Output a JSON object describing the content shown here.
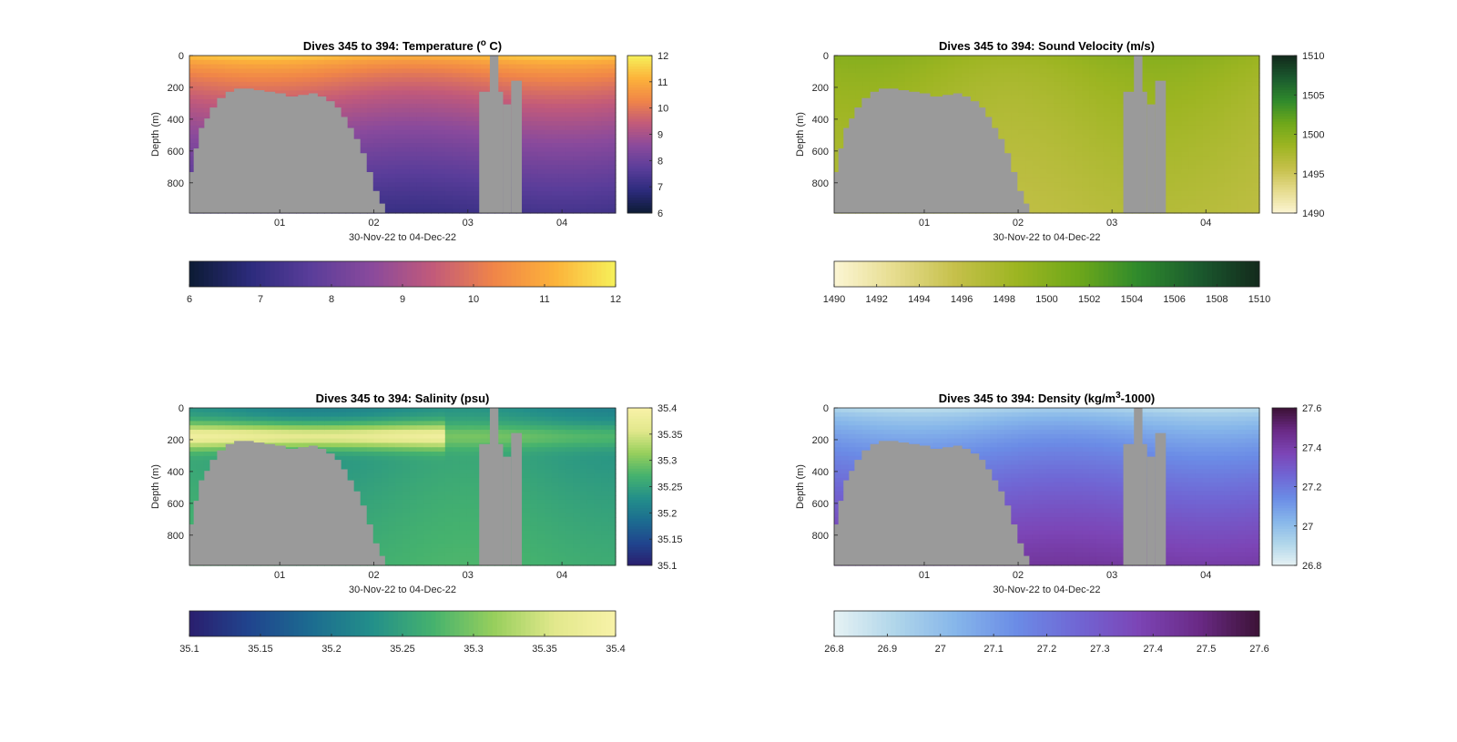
{
  "chart_data": [
    {
      "type": "heatmap",
      "title": "Dives 345 to 394: Temperature (",
      "title_sup": "o",
      "title_end": " C)",
      "xlabel": "30-Nov-22 to 04-Dec-22",
      "ylabel": "Depth (m)",
      "x_ticks": [
        "01",
        "02",
        "03",
        "04"
      ],
      "x_tick_days": [
        1,
        2,
        3,
        4
      ],
      "xlim_days": [
        0.04,
        4.57
      ],
      "y_ticks": [
        0,
        200,
        400,
        600,
        800
      ],
      "ylim": [
        0,
        990
      ],
      "clim": [
        6,
        12
      ],
      "colorbar_ticks": [
        6,
        7,
        8,
        9,
        10,
        11,
        12
      ],
      "horizontal_colorbar_ticks": [
        6,
        7,
        8,
        9,
        10,
        11,
        12
      ],
      "colormap": [
        "#0c1b34",
        "#2c2b7c",
        "#5a3d9a",
        "#8a4a9c",
        "#c25a7a",
        "#f08548",
        "#fcb23a",
        "#f6f05a"
      ],
      "surface_value": 11.6,
      "deep_value": 7.2,
      "inverted_gradient": false
    },
    {
      "type": "heatmap",
      "title": "Dives 345 to 394: Sound Velocity (m/s)",
      "xlabel": "30-Nov-22 to 04-Dec-22",
      "ylabel": "Depth (m)",
      "x_ticks": [
        "01",
        "02",
        "03",
        "04"
      ],
      "x_tick_days": [
        1,
        2,
        3,
        4
      ],
      "xlim_days": [
        0.04,
        4.57
      ],
      "y_ticks": [
        0,
        200,
        400,
        600,
        800
      ],
      "ylim": [
        0,
        990
      ],
      "clim": [
        1490,
        1510
      ],
      "colorbar_ticks": [
        1490,
        1495,
        1500,
        1505,
        1510
      ],
      "horizontal_colorbar_ticks": [
        1490,
        1492,
        1494,
        1496,
        1498,
        1500,
        1502,
        1504,
        1506,
        1508,
        1510
      ],
      "colormap": [
        "#fcf6d4",
        "#e6dc8e",
        "#c5c04a",
        "#9db522",
        "#6fa81a",
        "#2f8a2c",
        "#1b5a2e",
        "#132a1c"
      ],
      "surface_value": 1499.5,
      "deep_value": 1496.5,
      "inverted_gradient": false
    },
    {
      "type": "heatmap",
      "title": "Dives 345 to 394: Salinity (psu)",
      "xlabel": "30-Nov-22 to 04-Dec-22",
      "ylabel": "Depth (m)",
      "x_ticks": [
        "01",
        "02",
        "03",
        "04"
      ],
      "x_tick_days": [
        1,
        2,
        3,
        4
      ],
      "xlim_days": [
        0.04,
        4.57
      ],
      "y_ticks": [
        0,
        200,
        400,
        600,
        800
      ],
      "ylim": [
        0,
        990
      ],
      "clim": [
        35.1,
        35.4
      ],
      "colorbar_ticks": [
        35.1,
        35.15,
        35.2,
        35.25,
        35.3,
        35.35,
        35.4
      ],
      "horizontal_colorbar_ticks": [
        35.1,
        35.15,
        35.2,
        35.25,
        35.3,
        35.35,
        35.4
      ],
      "colormap": [
        "#2a1e6e",
        "#20458e",
        "#1c6c90",
        "#238f8a",
        "#45b26e",
        "#97cf5c",
        "#e2e88c",
        "#f8f2a8"
      ],
      "surface_value": 35.22,
      "deep_value": 35.27,
      "inverted_gradient": false
    },
    {
      "type": "heatmap",
      "title": "Dives 345 to 394: Density (kg/m",
      "title_sup": "3",
      "title_end": "-1000)",
      "xlabel": "30-Nov-22 to 04-Dec-22",
      "ylabel": "Depth (m)",
      "x_ticks": [
        "01",
        "02",
        "03",
        "04"
      ],
      "x_tick_days": [
        1,
        2,
        3,
        4
      ],
      "xlim_days": [
        0.04,
        4.57
      ],
      "y_ticks": [
        0,
        200,
        400,
        600,
        800
      ],
      "ylim": [
        0,
        990
      ],
      "clim": [
        26.8,
        27.6
      ],
      "colorbar_ticks": [
        26.8,
        27,
        27.2,
        27.4,
        27.6
      ],
      "horizontal_colorbar_ticks": [
        26.8,
        26.9,
        27,
        27.1,
        27.2,
        27.3,
        27.4,
        27.5,
        27.6
      ],
      "colormap": [
        "#e6f2f4",
        "#b0d6ea",
        "#86b6ea",
        "#6b8ce6",
        "#7066d4",
        "#7c45b6",
        "#6a2a86",
        "#3c1236"
      ],
      "surface_value": 26.88,
      "deep_value": 27.42,
      "inverted_gradient": false
    }
  ]
}
